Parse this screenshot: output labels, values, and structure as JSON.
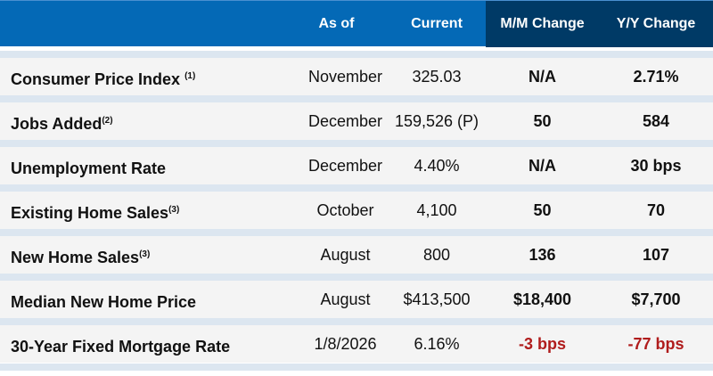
{
  "header": {
    "label": "",
    "as_of": "As of",
    "current": "Current",
    "mm": "M/M Change",
    "yy": "Y/Y Change"
  },
  "colors": {
    "header_blue": "#0469b6",
    "header_dark": "#003a66",
    "negative": "#b01c1c",
    "stripe": "#dce6f0"
  },
  "rows": [
    {
      "label": "Consumer Price Index ",
      "note": "(1)",
      "as_of": "November",
      "current": "325.03",
      "mm": "N/A",
      "yy": "2.71%"
    },
    {
      "label": "Jobs Added",
      "note": "(2)",
      "as_of": "December",
      "current": "159,526 (P)",
      "mm": "50",
      "yy": "584"
    },
    {
      "label": "Unemployment Rate",
      "note": "",
      "as_of": "December",
      "current": "4.40%",
      "mm": "N/A",
      "yy": "30 bps"
    },
    {
      "label": "Existing Home Sales",
      "note": "(3)",
      "as_of": "October",
      "current": "4,100",
      "mm": "50",
      "yy": "70"
    },
    {
      "label": "New Home Sales",
      "note": "(3)",
      "as_of": "August",
      "current": "800",
      "mm": "136",
      "yy": "107"
    },
    {
      "label": "Median New Home Price",
      "note": "",
      "as_of": "August",
      "current": "$413,500",
      "mm": "$18,400",
      "yy": "$7,700"
    },
    {
      "label": "30-Year Fixed Mortgage Rate",
      "note": "",
      "as_of": "1/8/2026",
      "current": "6.16%",
      "mm": "-3 bps",
      "yy": "-77 bps",
      "negative": true
    }
  ]
}
